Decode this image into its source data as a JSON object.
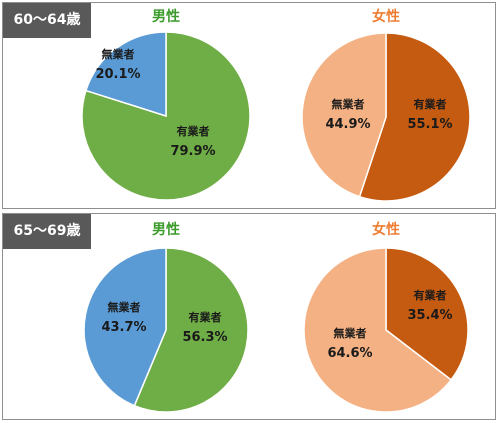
{
  "colors": {
    "male_employed": "#6fad46",
    "male_unemployed": "#5b9bd5",
    "female_employed": "#c55a11",
    "female_unemployed": "#f4b183",
    "male_title": "#3a9a2a",
    "female_title": "#ed7d31",
    "age_label_bg": "#595959"
  },
  "chart_data": [
    {
      "type": "pie",
      "age_group": "60〜64歳",
      "title": "男性",
      "slices": [
        {
          "label": "有業者",
          "value": 79.9,
          "value_text": "79.9%",
          "color": "#6fad46"
        },
        {
          "label": "無業者",
          "value": 20.1,
          "value_text": "20.1%",
          "color": "#5b9bd5"
        }
      ]
    },
    {
      "type": "pie",
      "age_group": "60〜64歳",
      "title": "女性",
      "slices": [
        {
          "label": "有業者",
          "value": 55.1,
          "value_text": "55.1%",
          "color": "#c55a11"
        },
        {
          "label": "無業者",
          "value": 44.9,
          "value_text": "44.9%",
          "color": "#f4b183"
        }
      ]
    },
    {
      "type": "pie",
      "age_group": "65〜69歳",
      "title": "男性",
      "slices": [
        {
          "label": "有業者",
          "value": 56.3,
          "value_text": "56.3%",
          "color": "#6fad46"
        },
        {
          "label": "無業者",
          "value": 43.7,
          "value_text": "43.7%",
          "color": "#5b9bd5"
        }
      ]
    },
    {
      "type": "pie",
      "age_group": "65〜69歳",
      "title": "女性",
      "slices": [
        {
          "label": "有業者",
          "value": 35.4,
          "value_text": "35.4%",
          "color": "#c55a11"
        },
        {
          "label": "無業者",
          "value": 64.6,
          "value_text": "64.6%",
          "color": "#f4b183"
        }
      ]
    }
  ],
  "age_groups": [
    "60〜64歳",
    "65〜69歳"
  ]
}
